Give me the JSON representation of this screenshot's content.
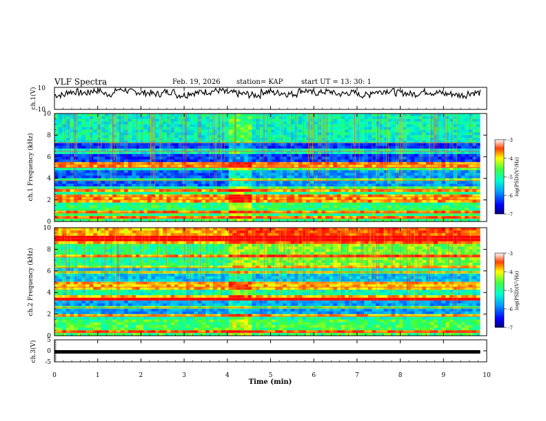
{
  "header": {
    "title": "VLF Spectra",
    "date": "Feb. 19, 2026",
    "station": "station= KAP",
    "start_ut": "start  UT  =   13: 30: 1"
  },
  "colors": {
    "low": "#1a1aff",
    "mid": "#00ff99",
    "high": "#ff2020",
    "trace": "#000000"
  },
  "chart_data": [
    {
      "type": "line",
      "panel": "ch1-waveform",
      "ylabel": "ch.1(V)",
      "ylim": [
        -10,
        10
      ],
      "yticks": [
        "10",
        "-10"
      ],
      "xlim": [
        0,
        9.85
      ],
      "values": [
        3,
        6,
        5,
        7,
        4,
        8,
        6,
        5,
        4,
        6,
        3,
        5,
        6,
        7,
        5,
        4,
        3,
        6,
        5,
        4,
        7,
        5,
        6,
        4,
        5,
        3,
        6,
        7,
        5,
        4,
        6,
        5,
        4,
        3,
        5
      ]
    },
    {
      "type": "heatmap",
      "panel": "ch1-spectrogram",
      "ylabel": "ch.1 Frequency (kHz)",
      "ylim": [
        0,
        10
      ],
      "yticks": [
        "0",
        "2",
        "4",
        "6",
        "8",
        "10"
      ],
      "xlim": [
        0,
        9.85
      ],
      "colorbar": {
        "label": "log(PSD)(V²/Hz)",
        "range": [
          -7,
          -3
        ],
        "ticks": [
          "-3",
          "-4",
          "-5",
          "-6",
          "-7"
        ]
      },
      "burst_window_min": [
        4.0,
        4.55
      ],
      "bands_khz": [
        0.3,
        0.8,
        2.0,
        2.3,
        3.0,
        3.8,
        5.0,
        5.3,
        6.5,
        7.3
      ]
    },
    {
      "type": "heatmap",
      "panel": "ch2-spectrogram",
      "ylabel": "ch.2 Frequency (kHz)",
      "ylim": [
        0,
        10
      ],
      "yticks": [
        "0",
        "2",
        "4",
        "6",
        "8",
        "10"
      ],
      "xlim": [
        0,
        9.85
      ],
      "colorbar": {
        "label": "log(PSD)(V²/Hz)",
        "range": [
          -7,
          -3
        ],
        "ticks": [
          "-3",
          "-4",
          "-5",
          "-6",
          "-7"
        ]
      },
      "burst_window_min": [
        4.0,
        4.6
      ],
      "bands_khz": [
        0.3,
        1.8,
        2.6,
        3.3,
        3.5,
        4.5,
        4.9,
        5.9,
        6.3,
        7.3,
        9.0
      ]
    },
    {
      "type": "line",
      "panel": "ch3-level",
      "ylabel": "ch.3(V)",
      "ylim": [
        -5,
        5
      ],
      "yticks": [
        "5",
        "0",
        "-5"
      ],
      "xlim": [
        0,
        9.85
      ],
      "level": 0
    }
  ],
  "xaxis": {
    "label": "Time  (min)",
    "range": [
      0,
      10
    ],
    "ticks": [
      "0",
      "1",
      "2",
      "3",
      "4",
      "5",
      "6",
      "7",
      "8",
      "9",
      "10"
    ]
  }
}
